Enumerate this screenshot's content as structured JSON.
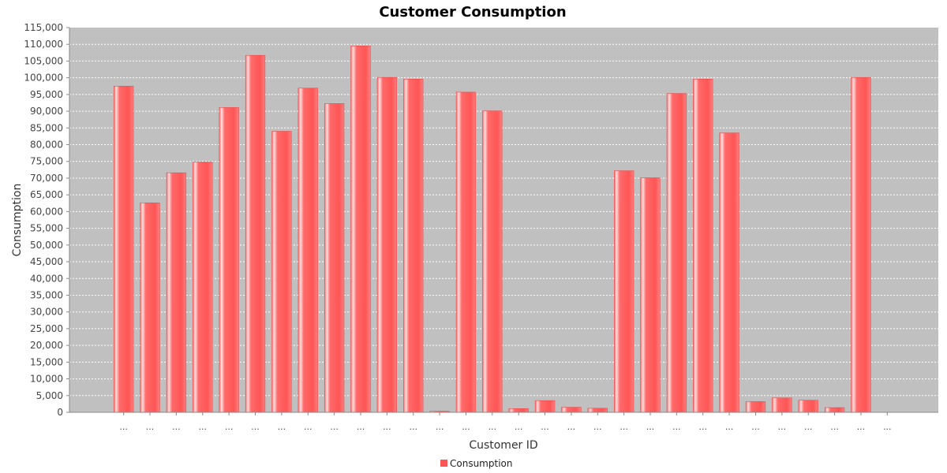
{
  "chart_data": {
    "type": "bar",
    "title": "Customer Consumption",
    "xlabel": "Customer ID",
    "ylabel": "Consumption",
    "ylim": [
      0,
      115000
    ],
    "ytick_step": 5000,
    "categories": [
      "...",
      "...",
      "...",
      "...",
      "...",
      "...",
      "...",
      "...",
      "...",
      "...",
      "...",
      "...",
      "...",
      "...",
      "...",
      "...",
      "...",
      "...",
      "...",
      "...",
      "...",
      "...",
      "...",
      "...",
      "...",
      "...",
      "...",
      "...",
      "...",
      "..."
    ],
    "series": [
      {
        "name": "Consumption",
        "values": [
          97500,
          62600,
          71600,
          74800,
          91100,
          106700,
          84000,
          96900,
          92300,
          109500,
          100100,
          99600,
          300,
          95700,
          90100,
          1100,
          3500,
          1500,
          1200,
          72200,
          70100,
          95300,
          99600,
          83500,
          3200,
          4300,
          3600,
          1400,
          100100,
          0
        ],
        "color": "#ff5555"
      }
    ],
    "grid": true,
    "legend": "bottom-center",
    "colors": {
      "plot_background": "#c0c0c0",
      "grid": "#ffffff",
      "bar": "#ff5555",
      "bar_highlight": "#ffd0d0"
    }
  }
}
